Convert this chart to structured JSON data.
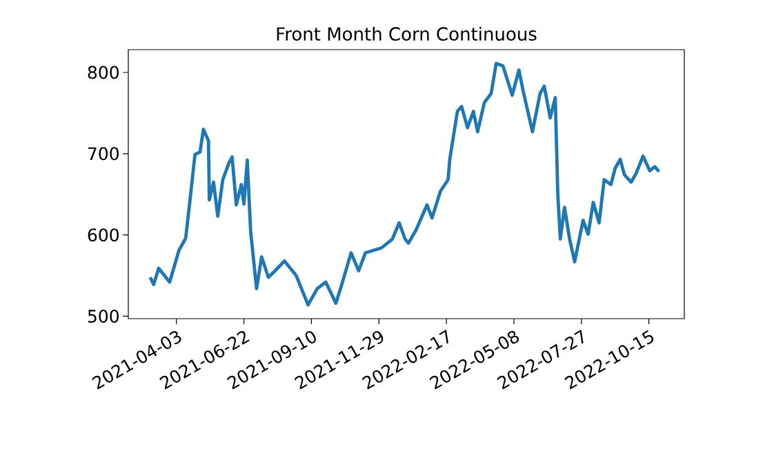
{
  "chart_data": {
    "type": "line",
    "title": "Front Month Corn Continuous",
    "x": [
      "2021-03-03",
      "2021-03-07",
      "2021-03-13",
      "2021-03-26",
      "2021-04-06",
      "2021-04-14",
      "2021-04-20",
      "2021-04-25",
      "2021-05-01",
      "2021-05-05",
      "2021-05-11",
      "2021-05-12",
      "2021-05-17",
      "2021-05-22",
      "2021-05-28",
      "2021-06-04",
      "2021-06-08",
      "2021-06-13",
      "2021-06-19",
      "2021-06-22",
      "2021-06-26",
      "2021-06-30",
      "2021-07-07",
      "2021-07-13",
      "2021-07-21",
      "2021-07-29",
      "2021-08-09",
      "2021-08-23",
      "2021-09-06",
      "2021-09-17",
      "2021-09-27",
      "2021-10-09",
      "2021-10-16",
      "2021-10-27",
      "2021-11-05",
      "2021-11-13",
      "2021-12-02",
      "2021-12-15",
      "2021-12-23",
      "2021-12-30",
      "2022-01-03",
      "2022-01-12",
      "2022-01-25",
      "2022-01-31",
      "2022-02-10",
      "2022-02-19",
      "2022-02-21",
      "2022-03-02",
      "2022-03-07",
      "2022-03-14",
      "2022-03-21",
      "2022-03-26",
      "2022-04-03",
      "2022-04-11",
      "2022-04-17",
      "2022-04-25",
      "2022-05-06",
      "2022-05-14",
      "2022-05-19",
      "2022-05-30",
      "2022-06-08",
      "2022-06-13",
      "2022-06-20",
      "2022-06-26",
      "2022-06-29",
      "2022-07-02",
      "2022-07-07",
      "2022-07-13",
      "2022-07-19",
      "2022-07-29",
      "2022-08-04",
      "2022-08-10",
      "2022-08-17",
      "2022-08-23",
      "2022-08-31",
      "2022-09-05",
      "2022-09-11",
      "2022-09-16",
      "2022-09-24",
      "2022-09-30",
      "2022-10-08",
      "2022-10-16",
      "2022-10-22",
      "2022-10-27"
    ],
    "series": [
      {
        "color": "#1f77b4",
        "values": [
          548,
          539,
          559,
          542,
          581,
          596,
          651,
          699,
          702,
          730,
          716,
          643,
          665,
          623,
          668,
          688,
          696,
          637,
          662,
          638,
          692,
          604,
          534,
          573,
          548,
          556,
          568,
          550,
          514,
          534,
          542,
          516,
          539,
          578,
          556,
          578,
          584,
          595,
          615,
          595,
          590,
          606,
          637,
          621,
          654,
          668,
          693,
          752,
          758,
          732,
          752,
          727,
          763,
          774,
          811,
          808,
          772,
          803,
          777,
          727,
          774,
          783,
          744,
          769,
          651,
          595,
          634,
          595,
          567,
          618,
          601,
          640,
          615,
          668,
          662,
          682,
          693,
          674,
          665,
          676,
          697,
          679,
          684,
          678
        ]
      }
    ],
    "xlim": [
      "2021-02-05",
      "2022-11-26"
    ],
    "ylim": [
      497,
      828
    ],
    "xticks": [
      "2021-04-03",
      "2021-06-22",
      "2021-09-10",
      "2021-11-29",
      "2022-02-17",
      "2022-05-08",
      "2022-07-27",
      "2022-10-15"
    ],
    "yticks": [
      500,
      600,
      700,
      800
    ]
  }
}
